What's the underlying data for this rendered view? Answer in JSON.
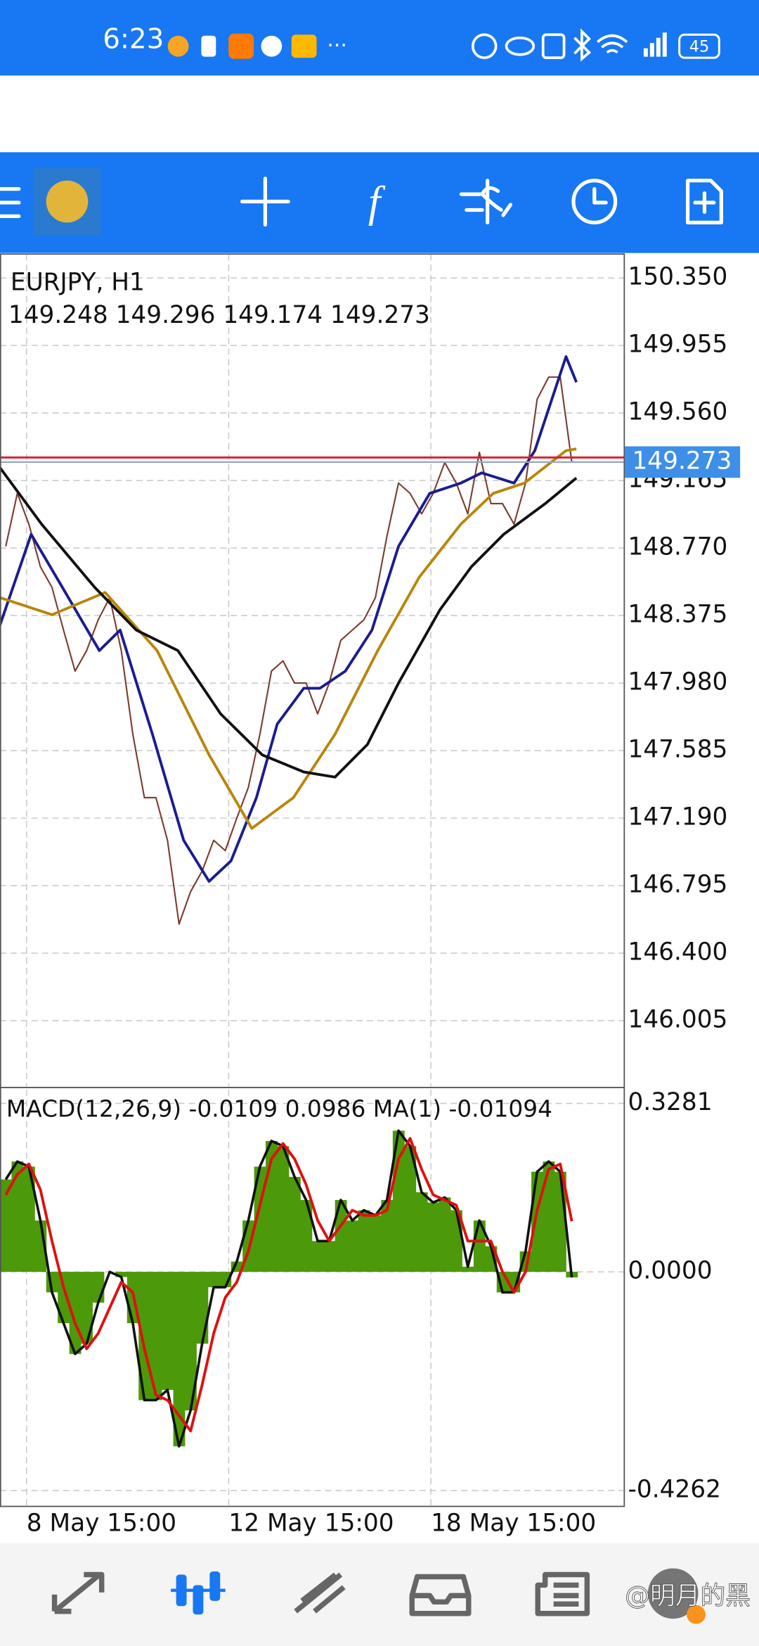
{
  "status_bar": {
    "time": "6:23",
    "battery": "45"
  },
  "watermark": "@明月的黑",
  "chart_data": [
    {
      "type": "line",
      "title": "EURJPY, H1",
      "ohlc": [
        149.248,
        149.296,
        149.174,
        149.273
      ],
      "x": [
        0,
        1,
        2,
        3,
        4,
        5,
        6,
        7,
        8,
        9,
        10,
        11,
        12,
        13,
        14,
        15,
        16,
        17,
        18,
        19,
        20,
        21,
        22,
        23,
        24,
        25,
        26,
        27,
        28,
        29,
        30,
        31,
        32,
        33,
        34,
        35,
        36,
        37,
        38,
        39,
        40,
        41,
        42,
        43,
        44,
        45,
        46,
        47,
        48,
        49
      ],
      "xlim": [
        -0.5,
        53.5
      ],
      "ylim": [
        145.62,
        150.49
      ],
      "yticks": [
        {
          "value": 150.35,
          "label": "150.350"
        },
        {
          "value": 149.955,
          "label": "149.955"
        },
        {
          "value": 149.56,
          "label": "149.560"
        },
        {
          "value": 149.165,
          "label": "149.165"
        },
        {
          "value": 148.77,
          "label": "148.770"
        },
        {
          "value": 148.375,
          "label": "148.375"
        },
        {
          "value": 147.98,
          "label": "147.980"
        },
        {
          "value": 147.585,
          "label": "147.585"
        },
        {
          "value": 147.19,
          "label": "147.190"
        },
        {
          "value": 146.795,
          "label": "146.795"
        },
        {
          "value": 146.4,
          "label": "146.400"
        },
        {
          "value": 146.005,
          "label": "146.005"
        }
      ],
      "grid": true,
      "series": [
        {
          "color": "#7a3b2e",
          "values": [
            148.78,
            149.09,
            148.91,
            148.66,
            148.54,
            148.29,
            148.05,
            148.17,
            148.35,
            148.48,
            148.17,
            147.68,
            147.31,
            147.31,
            147.06,
            146.57,
            146.76,
            146.88,
            147.06,
            147.0,
            147.19,
            147.37,
            147.68,
            148.05,
            148.11,
            147.98,
            147.98,
            147.8,
            147.98,
            148.23,
            148.29,
            148.35,
            148.48,
            148.84,
            149.15,
            149.09,
            148.97,
            149.09,
            149.27,
            149.15,
            148.97,
            149.33,
            149.03,
            149.03,
            148.91,
            149.15,
            149.64,
            149.77,
            149.77,
            149.273
          ]
        },
        {
          "color": "#1c1c8f",
          "x": [
            -0.5,
            2.2,
            4.9,
            8.1,
            9.9,
            12.7,
            15.4,
            17.6,
            19.5,
            21.7,
            23.5,
            25.8,
            27.2,
            29.4,
            31.7,
            34,
            36.7,
            39.4,
            41.2,
            44,
            45.8,
            48.5,
            49.4
          ],
          "values": [
            148.32,
            148.85,
            148.54,
            148.17,
            148.29,
            147.68,
            147.06,
            146.82,
            146.94,
            147.31,
            147.74,
            147.95,
            147.95,
            148.05,
            148.29,
            148.78,
            149.09,
            149.15,
            149.21,
            149.15,
            149.34,
            149.89,
            149.74
          ]
        },
        {
          "color": "#b8860b",
          "x": [
            -0.5,
            4.0,
            8.6,
            13.1,
            17.6,
            21.3,
            24.9,
            28.5,
            32.2,
            35.8,
            39.4,
            42.2,
            44.9,
            48.5,
            49.4
          ],
          "values": [
            148.48,
            148.38,
            148.51,
            148.17,
            147.56,
            147.13,
            147.31,
            147.68,
            148.17,
            148.6,
            148.91,
            149.09,
            149.15,
            149.34,
            149.35
          ]
        },
        {
          "color": "#111111",
          "x": [
            -0.5,
            3.1,
            7.7,
            11.3,
            14.9,
            18.6,
            22.2,
            25.8,
            28.5,
            31.3,
            34,
            37.6,
            40.3,
            43.1,
            46.7,
            49.4
          ],
          "values": [
            149.24,
            148.91,
            148.54,
            148.29,
            148.17,
            147.8,
            147.56,
            147.46,
            147.43,
            147.62,
            147.98,
            148.41,
            148.66,
            148.85,
            149.03,
            149.18
          ]
        }
      ],
      "current_price": 149.273,
      "current_price_color": "#3d8fe8",
      "ask_line": 149.3,
      "ask_color": "#d9232e"
    },
    {
      "type": "bar",
      "title": "MACD(12,26,9)",
      "main_value": -0.0109,
      "signal_value": 0.0986,
      "ma_label": "MA(1)",
      "ma_value": -0.01094,
      "x": [
        0,
        1,
        2,
        3,
        4,
        5,
        6,
        7,
        8,
        9,
        10,
        11,
        12,
        13,
        14,
        15,
        16,
        17,
        18,
        19,
        20,
        21,
        22,
        23,
        24,
        25,
        26,
        27,
        28,
        29,
        30,
        31,
        32,
        33,
        34,
        35,
        36,
        37,
        38,
        39,
        40,
        41,
        42,
        43,
        44,
        45,
        46,
        47,
        48,
        49
      ],
      "xlim": [
        -0.5,
        53.5
      ],
      "xticks": [
        {
          "value": 1.8,
          "label": "8 May 15:00"
        },
        {
          "value": 19.3,
          "label": "12 May 15:00"
        },
        {
          "value": 36.8,
          "label": "18 May 15:00"
        }
      ],
      "ylim": [
        -0.457,
        0.355
      ],
      "yticks": [
        0.3281,
        {
          "value": 0,
          "label": "0.0000"
        },
        -0.4262
      ],
      "color": "#4c990a",
      "values": [
        0.18,
        0.215,
        0.205,
        0.1,
        -0.04,
        -0.1,
        -0.16,
        -0.14,
        -0.06,
        0,
        -0.01,
        -0.1,
        -0.25,
        -0.25,
        -0.23,
        -0.34,
        -0.27,
        -0.14,
        -0.03,
        -0.03,
        0.02,
        0.1,
        0.205,
        0.255,
        0.245,
        0.185,
        0.14,
        0.06,
        0.06,
        0.14,
        0.1,
        0.12,
        0.11,
        0.14,
        0.275,
        0.245,
        0.155,
        0.135,
        0.145,
        0.12,
        0.01,
        0.1,
        0.05,
        -0.04,
        -0.04,
        0.04,
        0.195,
        0.215,
        0.195,
        -0.0109
      ],
      "signal": {
        "color": "#e01010",
        "values": [
          0.15,
          0.19,
          0.21,
          0.16,
          0.06,
          -0.03,
          -0.1,
          -0.15,
          -0.12,
          -0.07,
          -0.02,
          -0.04,
          -0.15,
          -0.24,
          -0.25,
          -0.28,
          -0.31,
          -0.22,
          -0.12,
          -0.05,
          -0.02,
          0.04,
          0.13,
          0.22,
          0.25,
          0.22,
          0.17,
          0.1,
          0.06,
          0.09,
          0.12,
          0.11,
          0.11,
          0.12,
          0.22,
          0.26,
          0.2,
          0.15,
          0.14,
          0.13,
          0.06,
          0.06,
          0.06,
          0,
          -0.04,
          0,
          0.12,
          0.2,
          0.21,
          0.0986
        ]
      }
    }
  ]
}
